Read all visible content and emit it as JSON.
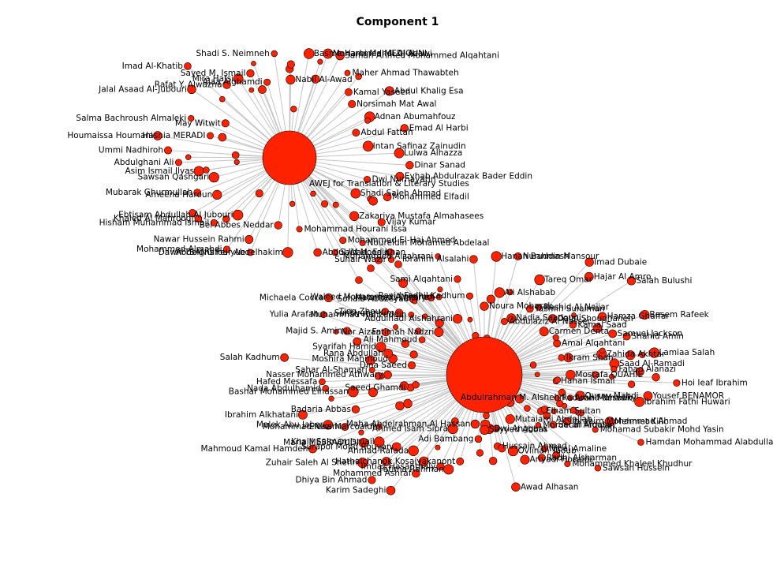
{
  "title": "Component  1",
  "colors": {
    "node": "#ff2200",
    "edge": "#c4c4c4",
    "label": "#000000",
    "background": "#ffffff"
  },
  "hubs": [
    {
      "id": "h1",
      "label": "AWEJ for Translation &amp; Literary Studies"
    },
    {
      "id": "h2",
      "label": "Abdulrahman M. Alshehri"
    }
  ],
  "hub1_labels": [
    "Eyhab Abdulrazak Bader Eddin",
    "Dwi Nurhayatin",
    "Mohammed Elfadil",
    "Shadi Saleh Ahmad",
    "Vijay Kumar",
    "Zakariya Mustafa Almahasees",
    "Noureldin Mohamed Abdelaal",
    "Mohammed El-Haj Ahmed",
    "Said M. Faiq",
    "Abdul Wadood Khan",
    "Mohammad Hourani Issa",
    "Abdelghafour Abdelhakim",
    "Bel Abbes Neddar",
    "Dawn TSANG Fei-yue",
    "Nawar Hussein Rahmi",
    "Mohammed Almahdi",
    "Ebtisam Abdullah Al Jubouri",
    "Hisham Muhammad Ismail",
    "Khaled Al Mahrooqi",
    "Ameena Haroun",
    "Mubarak Ghurmullah",
    "Sawsan Qashgari",
    "Asim Ismail Ilyas",
    "Abdulghani Ali",
    "Ummi Nadhiroh",
    "Houmaissa Houmani",
    "Hasnia MERADI",
    "Salma Bachroush Almaleki",
    "May Witwit",
    "Jalal Asaad Al-Jubouri",
    "Imad Al-Khatib",
    "Rafat Y. Alwazna",
    "Mira Hafsi",
    "Sayed M. Ismail",
    "Alaa Alghamdi",
    "Shadi S. Neimneh",
    "Nabil Al-Awad",
    "Basma Harbi Mahdi Al-Azawi",
    "Mohammed MEDJOUNI",
    "Samah Ahmed Mohammed Alqahtani",
    "Maher Ahmad Thawabteh",
    "Kamal Yaseen",
    "Norsimah Mat Awal",
    "Abdul Khalig Esa",
    "Adnan Abumahfouz",
    "Abdul Fattah",
    "Emad Al Harbi",
    "Intan Safinaz Zainudin",
    "Lulwa Alhazza",
    "Dinar Sanad"
  ],
  "hub2_labels": [
    "Mostafa QUAHIE",
    "Hoi Ieaf Ibrahim",
    "Hanan Ismail",
    "Yousef BENAMOR",
    "Ibrahim Fathi Huwari",
    "Qusay Mahdi",
    "Amira desouky",
    "Radwan Mahadin",
    "Mehmet Kilic",
    "Hamdan Mohammad Alabdullah",
    "Mohamad Subakir Mohd Yasin",
    "Ibrahim Mohammad Ahmad",
    "Elham Sultan",
    "Sarah Mousa",
    "Sawsan Hussein",
    "Mordecai Ardalan",
    "Mohammed Khaleel Khudhur",
    "Nibal Amaline",
    "Radhi Alsharman",
    "Mutaiami Abdallah",
    "Ariyadi Hosaini",
    "Ovlinah Taoub",
    "Awad Alhasan",
    "Hussain Ahmad",
    "Dwi Anggara",
    "Seyyed Abbas",
    "Adi Bambang",
    "Maha Abdelrahman Al Hassan",
    "Hathaichanok Kosaiyakanont",
    "Fatima Rahman",
    "Imtiaz Hasanthaly",
    "Ahmed Isam Sipra",
    "Mohammed Ashraf",
    "Karim Sadeghi",
    "Ahmad Rafada",
    "Dhiya Bin Ahmad",
    "Surapol Mohd Rouyan",
    "Zuhair Saleh Al Shehri",
    "Khalil Salmamismail",
    "Maria MESSAOUDI",
    "Elena Marcoaldi",
    "Mahmoud Kamal Hamdeh",
    "Mohammad Nazim",
    "Malek Abu Jaber",
    "Badaria Abbas",
    "Ibrahim Alkhatani",
    "Saeed Ghamdi",
    "Bashar Mohammed Elhassan",
    "Nada Abdulhamid",
    "Hafed Messafa",
    "Nasser Mohammed Athwary",
    "Sahar Al-Shamari",
    "Salah Kadhum",
    "Dina Saeed",
    "Moshira Mahmoud",
    "Rana Abdullah",
    "Syarifah Hamid",
    "Majid S. Amin",
    "Yulia Arafah",
    "Nor Aizan",
    "Michaela Cocca",
    "Ali Mahmoud",
    "Ting Zhou",
    "Sunbyung Kim",
    "Muhammad Hafizuddin",
    "Fatimah Nadzri",
    "Sohaib Abuzeyad",
    "Suhair Wazir",
    "Mahmoud Waziry",
    "Waleed Mohammed Alghamdi",
    "Abdulhadi Alshahrani",
    "Mohammed Alzahrani",
    "Sami Alqahtani",
    "Rayid Fadhil Kadhum",
    "Ibrahim Alsalahi",
    "Noura Mobarak",
    "Hanan Bahmash",
    "Ali Alshabab",
    "Nuruddin Mansour",
    "Abdulaziz Al Nasser",
    "Nadia Saadouni",
    "Tareq Omar",
    "Yasmin Sulaiman",
    "Rashid Al Najjar",
    "Imad Dubaie",
    "Hajar Al Amro",
    "Dalal Shoughaneh",
    "Carmen Denta",
    "Salah Bulushi",
    "Kamal Saad",
    "Hamza Ghaffar",
    "Amal Alqahtani",
    "Basem Rafeek",
    "Samuel Jackson",
    "Shahid Amin",
    "Ikram Shah",
    "Zahida Akhtar",
    "Lamiaa Salah",
    "Saad Al-Ramadi",
    "Fahad Alanazi"
  ],
  "hub1_bold_labels": [
    "AWEJ for Translation &amp; Literary Studies"
  ],
  "hub2_bold_labels": [
    "Abdulrahman M. Alshehri"
  ],
  "legend_entries": []
}
